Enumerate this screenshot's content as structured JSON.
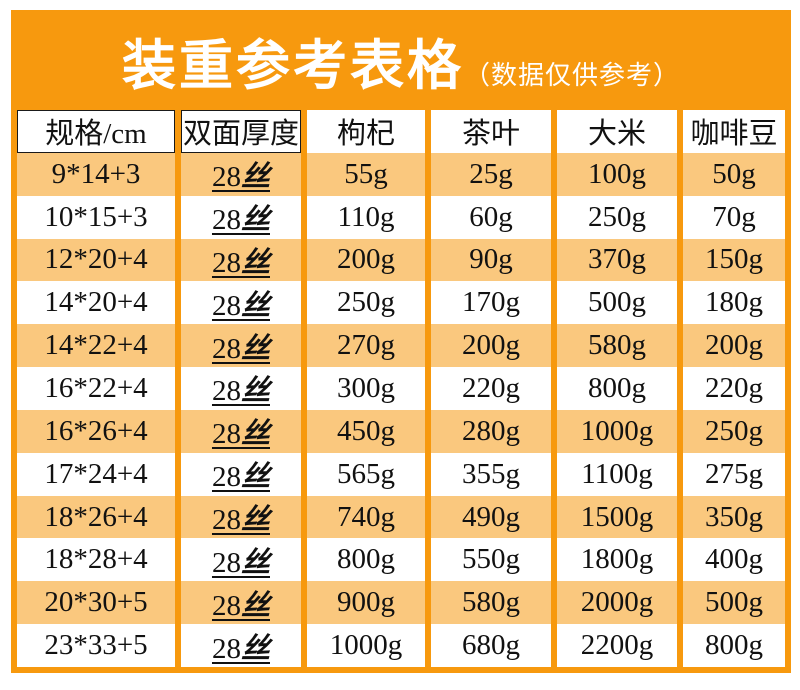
{
  "colors": {
    "frame_orange": "#F7990E",
    "row_orange": "#FAC87E",
    "row_white": "#FFFFFF",
    "banner_text": "#FFFFFF",
    "cell_text": "#111111"
  },
  "banner": {
    "title": "装重参考表格",
    "subtitle": "（数据仅供参考）"
  },
  "table": {
    "columns": [
      "规格/cm",
      "双面厚度",
      "枸杞",
      "茶叶",
      "大米",
      "咖啡豆"
    ],
    "rows": [
      {
        "spec": "9*14+3",
        "thickness_num": "28",
        "thickness_unit": "丝",
        "values": [
          "55g",
          "25g",
          "100g",
          "50g"
        ]
      },
      {
        "spec": "10*15+3",
        "thickness_num": "28",
        "thickness_unit": "丝",
        "values": [
          "110g",
          "60g",
          "250g",
          "70g"
        ]
      },
      {
        "spec": "12*20+4",
        "thickness_num": "28",
        "thickness_unit": "丝",
        "values": [
          "200g",
          "90g",
          "370g",
          "150g"
        ]
      },
      {
        "spec": "14*20+4",
        "thickness_num": "28",
        "thickness_unit": "丝",
        "values": [
          "250g",
          "170g",
          "500g",
          "180g"
        ]
      },
      {
        "spec": "14*22+4",
        "thickness_num": "28",
        "thickness_unit": "丝",
        "values": [
          "270g",
          "200g",
          "580g",
          "200g"
        ]
      },
      {
        "spec": "16*22+4",
        "thickness_num": "28",
        "thickness_unit": "丝",
        "values": [
          "300g",
          "220g",
          "800g",
          "220g"
        ]
      },
      {
        "spec": "16*26+4",
        "thickness_num": "28",
        "thickness_unit": "丝",
        "values": [
          "450g",
          "280g",
          "1000g",
          "250g"
        ]
      },
      {
        "spec": "17*24+4",
        "thickness_num": "28",
        "thickness_unit": "丝",
        "values": [
          "565g",
          "355g",
          "1100g",
          "275g"
        ]
      },
      {
        "spec": "18*26+4",
        "thickness_num": "28",
        "thickness_unit": "丝",
        "values": [
          "740g",
          "490g",
          "1500g",
          "350g"
        ]
      },
      {
        "spec": "18*28+4",
        "thickness_num": "28",
        "thickness_unit": "丝",
        "values": [
          "800g",
          "550g",
          "1800g",
          "400g"
        ]
      },
      {
        "spec": "20*30+5",
        "thickness_num": "28",
        "thickness_unit": "丝",
        "values": [
          "900g",
          "580g",
          "2000g",
          "500g"
        ]
      },
      {
        "spec": "23*33+5",
        "thickness_num": "28",
        "thickness_unit": "丝",
        "values": [
          "1000g",
          "680g",
          "2200g",
          "800g"
        ]
      }
    ]
  }
}
